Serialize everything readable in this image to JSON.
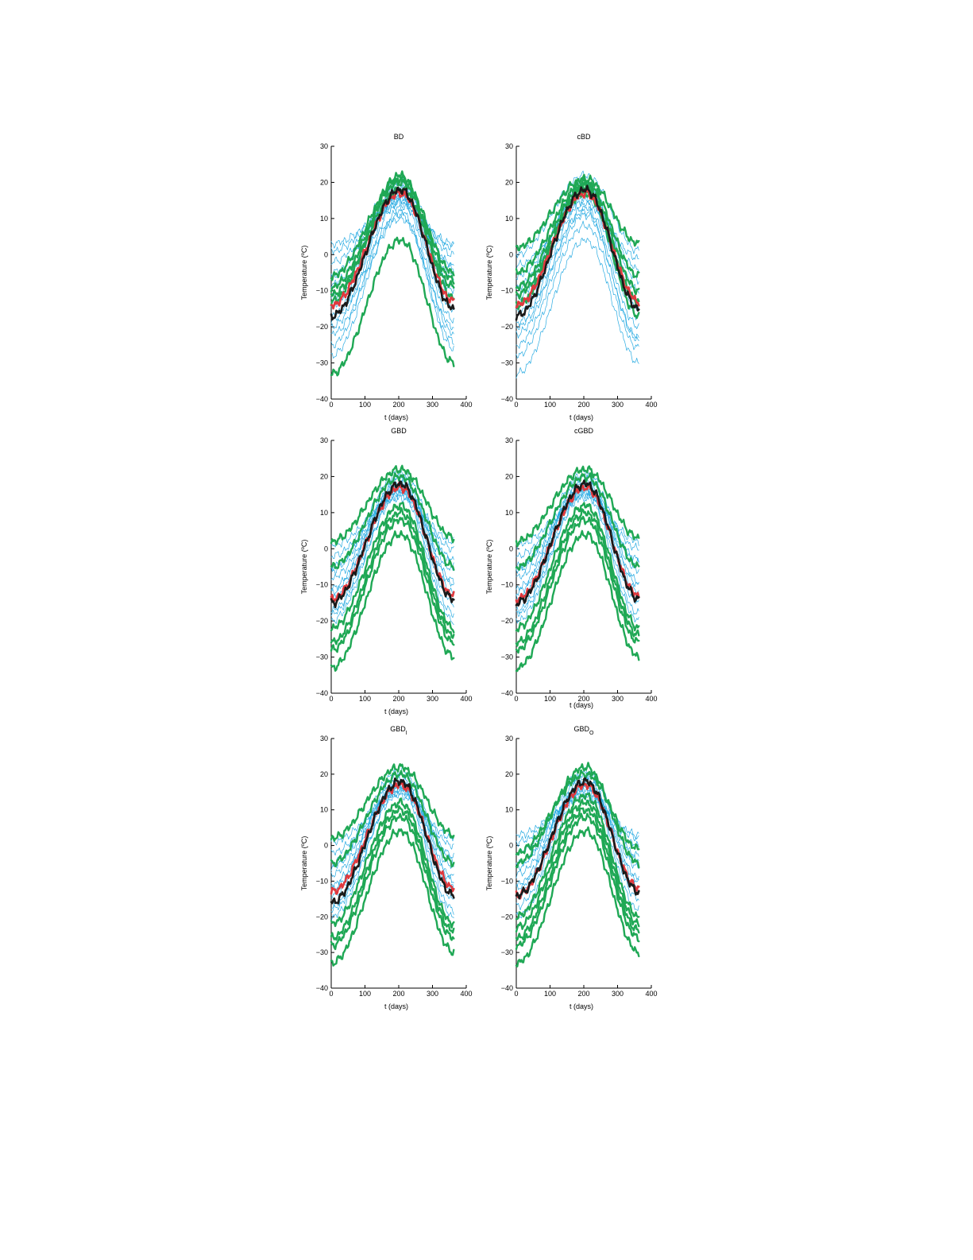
{
  "colors": {
    "inner": "#29abe2",
    "outlier": "#1fa855",
    "median": "#1a1a1a",
    "mean": "#e0393e"
  },
  "chart_data": [
    {
      "type": "line",
      "title": "BD",
      "title_sub": "",
      "xlabel": "t (days)",
      "ylabel": "Temperature (ºC)",
      "xlim": [
        0,
        400
      ],
      "ylim": [
        -40,
        30
      ],
      "xticks": [
        0,
        100,
        200,
        300,
        400
      ],
      "yticks": [
        -40,
        -30,
        -20,
        -10,
        0,
        10,
        20,
        30
      ],
      "inner": [
        {
          "start": -25,
          "peak": 15,
          "end": -22
        },
        {
          "start": -20,
          "peak": 16,
          "end": -18
        },
        {
          "start": -17,
          "peak": 17,
          "end": -15
        },
        {
          "start": -14,
          "peak": 18,
          "end": -12
        },
        {
          "start": -11,
          "peak": 19,
          "end": -9
        },
        {
          "start": -8,
          "peak": 17,
          "end": -6
        },
        {
          "start": -5,
          "peak": 16,
          "end": -3
        },
        {
          "start": -2,
          "peak": 15,
          "end": 0
        },
        {
          "start": 1,
          "peak": 14,
          "end": 2
        },
        {
          "start": 3,
          "peak": 13,
          "end": 3
        },
        {
          "start": -28,
          "peak": 12,
          "end": -26
        },
        {
          "start": -22,
          "peak": 10,
          "end": -20
        },
        {
          "start": -12,
          "peak": 20,
          "end": -10
        },
        {
          "start": -6,
          "peak": 21,
          "end": -4
        },
        {
          "start": -18,
          "peak": 11,
          "end": -24
        }
      ],
      "outliers": [
        {
          "start": -33,
          "peak": 4,
          "end": -30
        },
        {
          "start": -13,
          "peak": 22,
          "end": -12
        },
        {
          "start": -6,
          "peak": 21,
          "end": -5
        },
        {
          "start": -9,
          "peak": 20,
          "end": -7
        },
        {
          "start": -11,
          "peak": 18,
          "end": -9
        }
      ],
      "median": {
        "start": -17,
        "peak": 18,
        "end": -15
      },
      "mean": {
        "start": -14,
        "peak": 17,
        "end": -13
      }
    },
    {
      "type": "line",
      "title": "cBD",
      "title_sub": "",
      "xlabel": "t (days)",
      "ylabel": "Temperature (ºC)",
      "xlim": [
        0,
        400
      ],
      "ylim": [
        -40,
        30
      ],
      "xticks": [
        0,
        100,
        200,
        300,
        400
      ],
      "yticks": [
        -40,
        -30,
        -20,
        -10,
        0,
        10,
        20,
        30
      ],
      "inner": [
        {
          "start": -33,
          "peak": 4,
          "end": -30
        },
        {
          "start": -28,
          "peak": 8,
          "end": -26
        },
        {
          "start": -25,
          "peak": 11,
          "end": -23
        },
        {
          "start": -22,
          "peak": 13,
          "end": -20
        },
        {
          "start": -19,
          "peak": 15,
          "end": -17
        },
        {
          "start": -16,
          "peak": 16,
          "end": -15
        },
        {
          "start": -12,
          "peak": 20,
          "end": -10
        },
        {
          "start": -9,
          "peak": 19,
          "end": -7
        },
        {
          "start": -6,
          "peak": 17,
          "end": -4
        },
        {
          "start": -3,
          "peak": 14,
          "end": -1
        },
        {
          "start": 0,
          "peak": 22,
          "end": 1
        },
        {
          "start": -20,
          "peak": 12,
          "end": -24
        },
        {
          "start": -14,
          "peak": 18,
          "end": -13
        }
      ],
      "outliers": [
        {
          "start": 2,
          "peak": 21,
          "end": 3
        },
        {
          "start": -5,
          "peak": 20,
          "end": -6
        },
        {
          "start": -9,
          "peak": 19,
          "end": -10
        },
        {
          "start": -14,
          "peak": 18,
          "end": -17
        },
        {
          "start": -11,
          "peak": 17,
          "end": -13
        }
      ],
      "median": {
        "start": -17,
        "peak": 18,
        "end": -15
      },
      "mean": {
        "start": -14,
        "peak": 17,
        "end": -13
      }
    },
    {
      "type": "line",
      "title": "GBD",
      "title_sub": "",
      "xlabel": "t (days)",
      "ylabel": "Temperature (ºC)",
      "xlim": [
        0,
        400
      ],
      "ylim": [
        -40,
        30
      ],
      "xticks": [
        0,
        100,
        200,
        300,
        400
      ],
      "yticks": [
        -40,
        -30,
        -20,
        -10,
        0,
        10,
        20,
        30
      ],
      "inner": [
        {
          "start": -20,
          "peak": 16,
          "end": -18
        },
        {
          "start": -17,
          "peak": 17,
          "end": -15
        },
        {
          "start": -14,
          "peak": 18,
          "end": -12
        },
        {
          "start": -11,
          "peak": 19,
          "end": -9
        },
        {
          "start": -8,
          "peak": 17,
          "end": -6
        },
        {
          "start": -5,
          "peak": 16,
          "end": -3
        },
        {
          "start": -2,
          "peak": 15,
          "end": 0
        },
        {
          "start": 1,
          "peak": 14,
          "end": 2
        },
        {
          "start": -12,
          "peak": 20,
          "end": -10
        },
        {
          "start": -6,
          "peak": 21,
          "end": -4
        },
        {
          "start": -18,
          "peak": 15,
          "end": -20
        }
      ],
      "outliers": [
        {
          "start": -33,
          "peak": 4,
          "end": -30
        },
        {
          "start": -28,
          "peak": 8,
          "end": -26
        },
        {
          "start": -26,
          "peak": 10,
          "end": -24
        },
        {
          "start": -22,
          "peak": 12,
          "end": -22
        },
        {
          "start": 2,
          "peak": 22,
          "end": 3
        },
        {
          "start": -5,
          "peak": 20,
          "end": -5
        }
      ],
      "median": {
        "start": -15,
        "peak": 18,
        "end": -14
      },
      "mean": {
        "start": -14,
        "peak": 17,
        "end": -13
      }
    },
    {
      "type": "line",
      "title": "cGBD",
      "title_sub": "",
      "xlabel": "t (days)",
      "ylabel": "Temperature (ºC)",
      "xlim": [
        0,
        400
      ],
      "ylim": [
        -40,
        30
      ],
      "xticks": [
        0,
        100,
        200,
        300,
        400
      ],
      "yticks": [
        -40,
        -30,
        -20,
        -10,
        0,
        10,
        20,
        30
      ],
      "inner": [
        {
          "start": -20,
          "peak": 16,
          "end": -18
        },
        {
          "start": -17,
          "peak": 17,
          "end": -15
        },
        {
          "start": -14,
          "peak": 18,
          "end": -12
        },
        {
          "start": -11,
          "peak": 19,
          "end": -9
        },
        {
          "start": -8,
          "peak": 17,
          "end": -6
        },
        {
          "start": -5,
          "peak": 16,
          "end": -3
        },
        {
          "start": -2,
          "peak": 15,
          "end": 0
        },
        {
          "start": 1,
          "peak": 14,
          "end": 2
        },
        {
          "start": -12,
          "peak": 20,
          "end": -10
        },
        {
          "start": -6,
          "peak": 21,
          "end": -4
        },
        {
          "start": -18,
          "peak": 15,
          "end": -20
        }
      ],
      "outliers": [
        {
          "start": -33,
          "peak": 4,
          "end": -30
        },
        {
          "start": -28,
          "peak": 8,
          "end": -26
        },
        {
          "start": -26,
          "peak": 10,
          "end": -24
        },
        {
          "start": -22,
          "peak": 12,
          "end": -22
        },
        {
          "start": 2,
          "peak": 22,
          "end": 3
        },
        {
          "start": -5,
          "peak": 20,
          "end": -5
        }
      ],
      "median": {
        "start": -15,
        "peak": 18,
        "end": -14
      },
      "mean": {
        "start": -14,
        "peak": 17,
        "end": -13
      }
    },
    {
      "type": "line",
      "title": "GBD",
      "title_sub": "I",
      "xlabel": "t (days)",
      "ylabel": "Temperature (ºC)",
      "xlim": [
        0,
        400
      ],
      "ylim": [
        -40,
        30
      ],
      "xticks": [
        0,
        100,
        200,
        300,
        400
      ],
      "yticks": [
        -40,
        -30,
        -20,
        -10,
        0,
        10,
        20,
        30
      ],
      "inner": [
        {
          "start": -20,
          "peak": 16,
          "end": -18
        },
        {
          "start": -17,
          "peak": 17,
          "end": -15
        },
        {
          "start": -14,
          "peak": 18,
          "end": -12
        },
        {
          "start": -11,
          "peak": 19,
          "end": -9
        },
        {
          "start": -8,
          "peak": 17,
          "end": -6
        },
        {
          "start": -5,
          "peak": 16,
          "end": -3
        },
        {
          "start": -2,
          "peak": 15,
          "end": 0
        },
        {
          "start": 1,
          "peak": 14,
          "end": 2
        },
        {
          "start": -12,
          "peak": 20,
          "end": -10
        },
        {
          "start": -6,
          "peak": 21,
          "end": -4
        },
        {
          "start": -18,
          "peak": 15,
          "end": -20
        }
      ],
      "outliers": [
        {
          "start": -33,
          "peak": 4,
          "end": -30
        },
        {
          "start": -28,
          "peak": 8,
          "end": -26
        },
        {
          "start": -26,
          "peak": 10,
          "end": -24
        },
        {
          "start": -22,
          "peak": 12,
          "end": -22
        },
        {
          "start": 2,
          "peak": 22,
          "end": 3
        },
        {
          "start": -5,
          "peak": 20,
          "end": -5
        }
      ],
      "median": {
        "start": -16,
        "peak": 18,
        "end": -14
      },
      "mean": {
        "start": -13,
        "peak": 17,
        "end": -12
      }
    },
    {
      "type": "line",
      "title": "GBD",
      "title_sub": "O",
      "xlabel": "t (days)",
      "ylabel": "Temperature (ºC)",
      "xlim": [
        0,
        400
      ],
      "ylim": [
        -40,
        30
      ],
      "xticks": [
        0,
        100,
        200,
        300,
        400
      ],
      "yticks": [
        -40,
        -30,
        -20,
        -10,
        0,
        10,
        20,
        30
      ],
      "inner": [
        {
          "start": -20,
          "peak": 16,
          "end": -18
        },
        {
          "start": -17,
          "peak": 17,
          "end": -15
        },
        {
          "start": -14,
          "peak": 18,
          "end": -12
        },
        {
          "start": -11,
          "peak": 19,
          "end": -9
        },
        {
          "start": -8,
          "peak": 17,
          "end": -6
        },
        {
          "start": -5,
          "peak": 16,
          "end": -3
        },
        {
          "start": -2,
          "peak": 15,
          "end": 0
        },
        {
          "start": 1,
          "peak": 14,
          "end": 2
        },
        {
          "start": 3,
          "peak": 13,
          "end": 3
        },
        {
          "start": -12,
          "peak": 20,
          "end": -10
        },
        {
          "start": -6,
          "peak": 21,
          "end": -4
        }
      ],
      "outliers": [
        {
          "start": -33,
          "peak": 4,
          "end": -30
        },
        {
          "start": -28,
          "peak": 8,
          "end": -26
        },
        {
          "start": -26,
          "peak": 10,
          "end": -24
        },
        {
          "start": -23,
          "peak": 12,
          "end": -22
        },
        {
          "start": -20,
          "peak": 14,
          "end": -20
        },
        {
          "start": -5,
          "peak": 22,
          "end": -5
        },
        {
          "start": -2,
          "peak": 20,
          "end": -1
        }
      ],
      "median": {
        "start": -14,
        "peak": 18,
        "end": -13
      },
      "mean": {
        "start": -14,
        "peak": 17,
        "end": -12
      }
    }
  ]
}
